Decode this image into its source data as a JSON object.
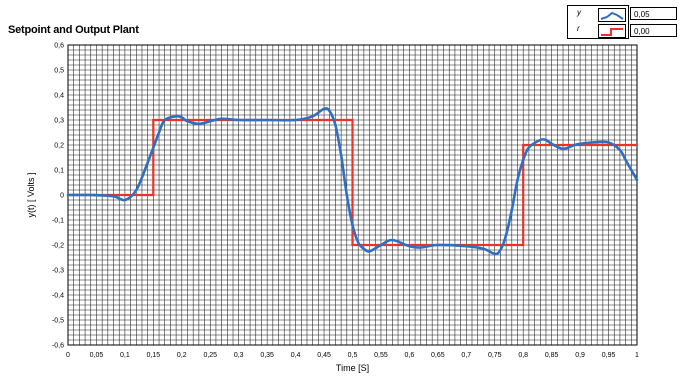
{
  "title": "Setpoint and Output Plant",
  "legend": {
    "items": [
      {
        "name": "y",
        "value": "0,05",
        "color": "#2f6fbf"
      },
      {
        "name": "r",
        "value": "0,00",
        "color": "#e8332b"
      }
    ]
  },
  "chart_data": {
    "type": "line",
    "title": "Setpoint and Output Plant",
    "xlabel": "Time [S]",
    "ylabel": "y(t) [ Volts ]",
    "xlim": [
      0,
      1
    ],
    "ylim": [
      -0.6,
      0.6
    ],
    "grid": true,
    "grid_minor": true,
    "legend_position": "top-right",
    "xticks": [
      "0",
      "0,05",
      "0,1",
      "0,15",
      "0,2",
      "0,25",
      "0,3",
      "0,35",
      "0,4",
      "0,45",
      "0,5",
      "0,55",
      "0,6",
      "0,65",
      "0,7",
      "0,75",
      "0,8",
      "0,85",
      "0,9",
      "0,95",
      "1"
    ],
    "yticks": [
      "0,6",
      "0,5",
      "0,4",
      "0,3",
      "0,2",
      "0,1",
      "0",
      "-0,1",
      "-0,2",
      "-0,3",
      "-0,4",
      "-0,5",
      "-0,6"
    ],
    "series": [
      {
        "name": "r",
        "color": "#e8332b",
        "step": true,
        "x": [
          0,
          0.15,
          0.15,
          0.5,
          0.5,
          0.8,
          0.8,
          1.0
        ],
        "y": [
          0,
          0,
          0.3,
          0.3,
          -0.2,
          -0.2,
          0.2,
          0.2
        ]
      },
      {
        "name": "y",
        "color": "#2f6fbf",
        "x": [
          0,
          0.04,
          0.08,
          0.1,
          0.12,
          0.14,
          0.16,
          0.17,
          0.19,
          0.2,
          0.21,
          0.23,
          0.25,
          0.27,
          0.3,
          0.35,
          0.4,
          0.43,
          0.45,
          0.46,
          0.47,
          0.48,
          0.49,
          0.5,
          0.51,
          0.52,
          0.53,
          0.55,
          0.57,
          0.6,
          0.62,
          0.65,
          0.7,
          0.73,
          0.75,
          0.76,
          0.77,
          0.78,
          0.79,
          0.8,
          0.81,
          0.83,
          0.84,
          0.85,
          0.87,
          0.89,
          0.9,
          0.92,
          0.95,
          0.97,
          0.98,
          0.99,
          1.0
        ],
        "y": [
          0,
          0,
          -0.005,
          -0.02,
          0.02,
          0.13,
          0.25,
          0.3,
          0.315,
          0.31,
          0.295,
          0.285,
          0.295,
          0.305,
          0.3,
          0.3,
          0.3,
          0.315,
          0.345,
          0.335,
          0.28,
          0.16,
          0.0,
          -0.12,
          -0.19,
          -0.215,
          -0.225,
          -0.2,
          -0.18,
          -0.205,
          -0.21,
          -0.2,
          -0.205,
          -0.215,
          -0.235,
          -0.22,
          -0.16,
          -0.06,
          0.06,
          0.14,
          0.19,
          0.22,
          0.22,
          0.205,
          0.185,
          0.2,
          0.205,
          0.21,
          0.21,
          0.18,
          0.14,
          0.1,
          0.06
        ]
      }
    ]
  }
}
